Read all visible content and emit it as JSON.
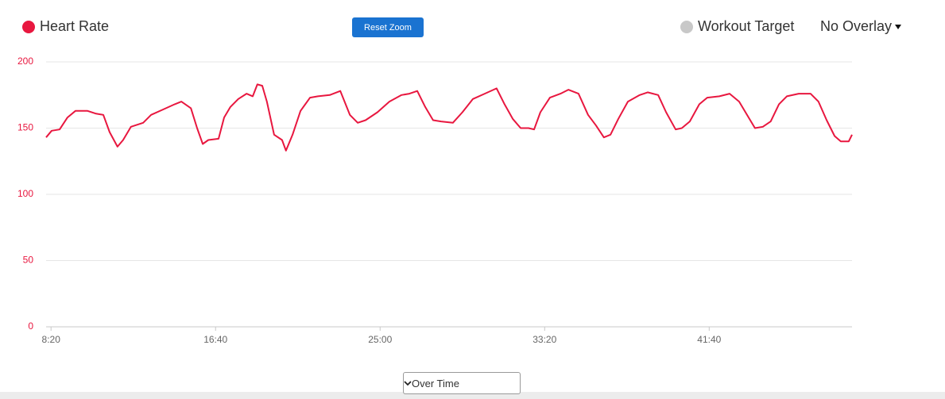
{
  "chart_data": {
    "type": "line",
    "x": [
      485,
      502,
      526,
      550,
      574,
      611,
      635,
      659,
      678,
      702,
      719,
      743,
      780,
      804,
      840,
      876,
      896,
      925,
      944,
      961,
      978,
      1009,
      1026,
      1045,
      1069,
      1094,
      1113,
      1127,
      1142,
      1156,
      1178,
      1202,
      1214,
      1234,
      1258,
      1287,
      1311,
      1347,
      1379,
      1408,
      1432,
      1456,
      1492,
      1528,
      1565,
      1589,
      1613,
      1637,
      1661,
      1685,
      1721,
      1750,
      1782,
      1818,
      1854,
      1878,
      1903,
      1927,
      1951,
      1968,
      1987,
      2016,
      2048,
      2072,
      2103,
      2132,
      2156,
      2180,
      2200,
      2224,
      2253,
      2289,
      2313,
      2345,
      2369,
      2398,
      2417,
      2441,
      2470,
      2494,
      2531,
      2562,
      2591,
      2615,
      2639,
      2663,
      2687,
      2712,
      2736,
      2772,
      2808,
      2832,
      2857,
      2881,
      2900,
      2924,
      2934
    ],
    "series": [
      {
        "name": "Heart Rate",
        "color": "#e8173f",
        "values": [
          143,
          148,
          149,
          158,
          163,
          163,
          161,
          160,
          147,
          136,
          141,
          151,
          154,
          160,
          164,
          168,
          170,
          165,
          150,
          138,
          141,
          142,
          158,
          166,
          172,
          176,
          174,
          183,
          182,
          170,
          145,
          141,
          133,
          145,
          163,
          173,
          174,
          175,
          178,
          160,
          154,
          156,
          162,
          170,
          175,
          176,
          178,
          166,
          156,
          155,
          154,
          162,
          172,
          176,
          180,
          168,
          157,
          150,
          150,
          149,
          162,
          173,
          176,
          179,
          176,
          160,
          152,
          143,
          145,
          157,
          170,
          175,
          177,
          175,
          162,
          149,
          150,
          155,
          168,
          173,
          174,
          176,
          170,
          160,
          150,
          151,
          155,
          168,
          174,
          176,
          176,
          170,
          156,
          144,
          140,
          140,
          145
        ]
      }
    ],
    "xlim": [
      485,
      2934
    ],
    "xticks": [
      {
        "value": 500,
        "label": "8:20"
      },
      {
        "value": 1000,
        "label": "16:40"
      },
      {
        "value": 1500,
        "label": "25:00"
      },
      {
        "value": 2000,
        "label": "33:20"
      },
      {
        "value": 2500,
        "label": "41:40"
      }
    ],
    "ylim": [
      0,
      200
    ],
    "yticks": [
      0,
      50,
      100,
      150,
      200
    ],
    "grid": true,
    "tick_color": "#e8173f"
  },
  "ui": {
    "reset_button": "Reset Zoom",
    "target_legend": "Workout Target",
    "target_color": "#c8c8c8",
    "overlay_menu": "No Overlay",
    "view_select": "Over Time"
  }
}
